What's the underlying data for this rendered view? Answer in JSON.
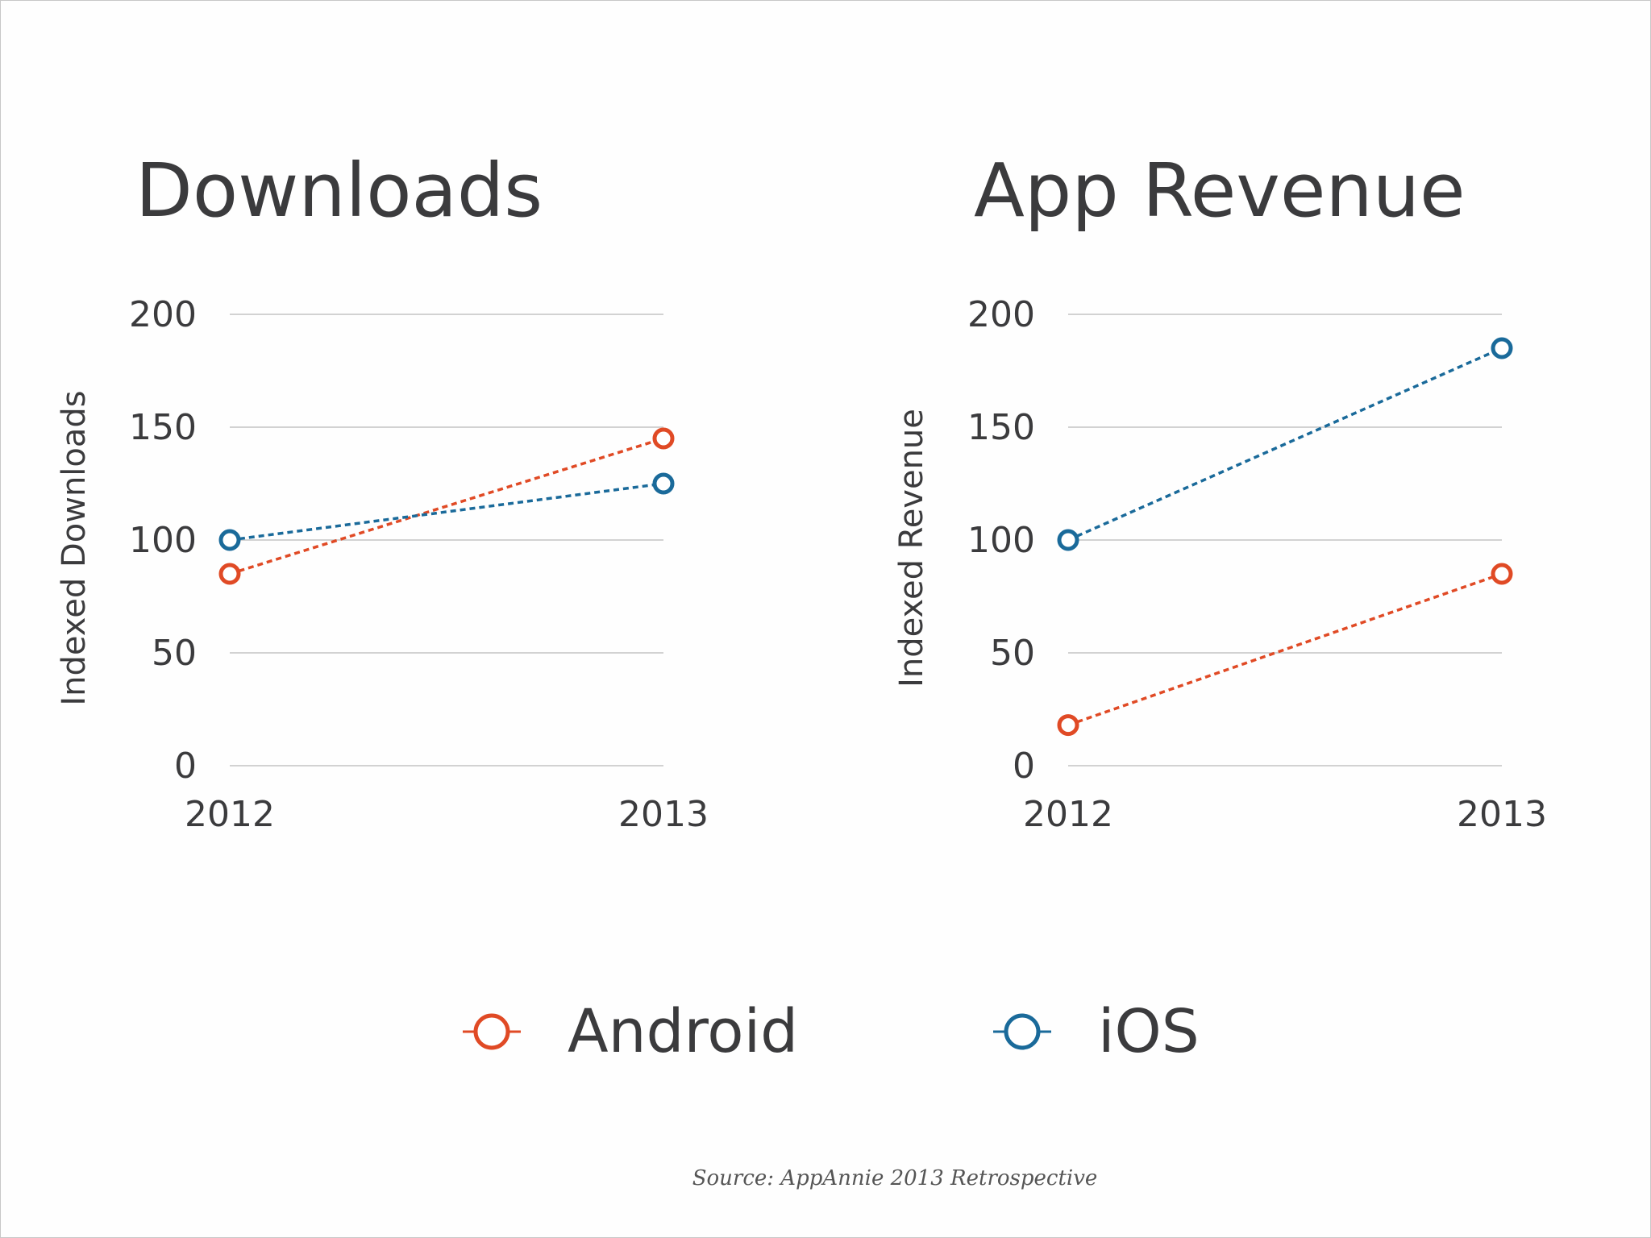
{
  "colors": {
    "android": "#e04a25",
    "ios": "#1a6a9a",
    "text": "#3b3b3d",
    "grid": "#d2d2d2"
  },
  "chart_data": [
    {
      "type": "line",
      "title": "Downloads",
      "ylabel": "Indexed Downloads",
      "xlabel": "",
      "x": [
        "2012",
        "2013"
      ],
      "ylim": [
        0,
        200
      ],
      "yticks": [
        0,
        50,
        100,
        150,
        200
      ],
      "grid": true,
      "series": [
        {
          "name": "Android",
          "color": "#e04a25",
          "values": [
            85,
            145
          ]
        },
        {
          "name": "iOS",
          "color": "#1a6a9a",
          "values": [
            100,
            125
          ]
        }
      ]
    },
    {
      "type": "line",
      "title": "App Revenue",
      "ylabel": "Indexed Revenue",
      "xlabel": "",
      "x": [
        "2012",
        "2013"
      ],
      "ylim": [
        0,
        200
      ],
      "yticks": [
        0,
        50,
        100,
        150,
        200
      ],
      "grid": true,
      "series": [
        {
          "name": "Android",
          "color": "#e04a25",
          "values": [
            18,
            85
          ]
        },
        {
          "name": "iOS",
          "color": "#1a6a9a",
          "values": [
            100,
            185
          ]
        }
      ]
    }
  ],
  "legend": {
    "placement": "bottom-center",
    "items": [
      {
        "label": "Android",
        "color": "#e04a25",
        "icon": "circle-marker-icon"
      },
      {
        "label": "iOS",
        "color": "#1a6a9a",
        "icon": "circle-marker-icon"
      }
    ]
  },
  "source": "Source: AppAnnie 2013 Retrospective"
}
